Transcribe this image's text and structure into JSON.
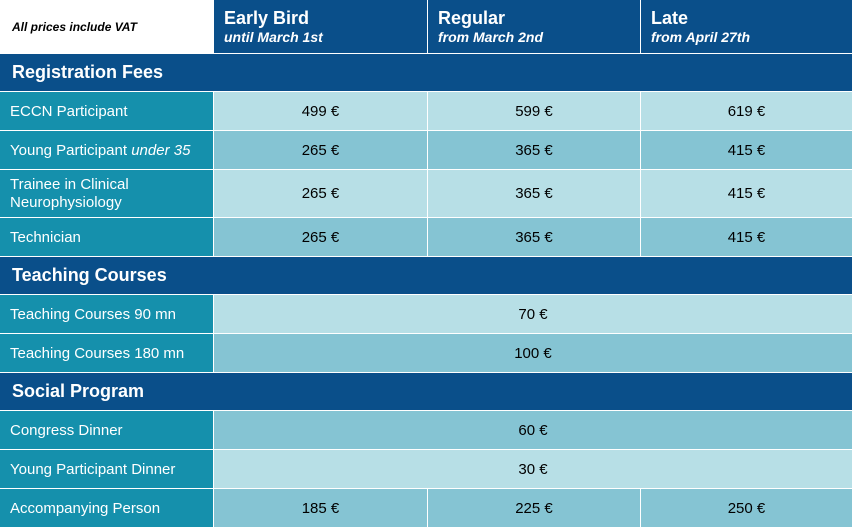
{
  "header": {
    "note": "All prices include VAT",
    "columns": [
      {
        "title": "Early Bird",
        "subtitle": "until March 1st"
      },
      {
        "title": "Regular",
        "subtitle": "from March 2nd"
      },
      {
        "title": "Late",
        "subtitle": "from April 27th"
      }
    ]
  },
  "sections": {
    "registration": {
      "title": "Registration Fees",
      "rows": [
        {
          "label": "ECCN Participant",
          "label_em": "",
          "prices": [
            "499 €",
            "599 €",
            "619 €"
          ]
        },
        {
          "label": "Young Participant",
          "label_em": "under 35",
          "prices": [
            "265 €",
            "365 €",
            "415 €"
          ]
        },
        {
          "label": "Trainee in Clinical Neurophysiology",
          "label_em": "",
          "prices": [
            "265 €",
            "365 €",
            "415 €"
          ]
        },
        {
          "label": "Technician",
          "label_em": "",
          "prices": [
            "265 €",
            "365 €",
            "415 €"
          ]
        }
      ]
    },
    "teaching": {
      "title": "Teaching Courses",
      "rows": [
        {
          "label": "Teaching Courses 90 mn",
          "price": "70 €"
        },
        {
          "label": "Teaching Courses 180 mn",
          "price": "100 €"
        }
      ]
    },
    "social": {
      "title": "Social Program",
      "rows": [
        {
          "label": "Congress Dinner",
          "price": "60 €"
        },
        {
          "label": "Young Participant Dinner",
          "price": "30 €"
        },
        {
          "label": "Accompanying Person",
          "prices": [
            "185 €",
            "225 €",
            "250 €"
          ]
        }
      ]
    }
  },
  "colors": {
    "header_bg": "#0a4f8a",
    "label_bg": "#1590ac",
    "row_light": "#b7dfe6",
    "row_mid": "#85c4d3"
  }
}
